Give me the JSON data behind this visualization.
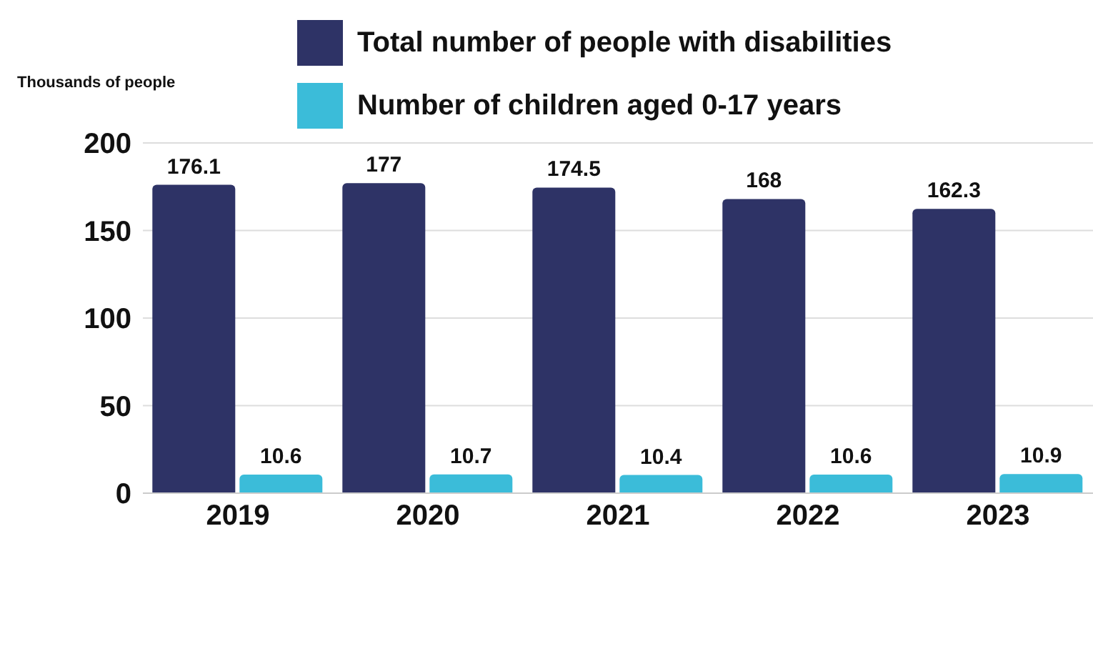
{
  "chart_data": {
    "type": "bar",
    "ylabel": "Thousands of people",
    "categories": [
      "2019",
      "2020",
      "2021",
      "2022",
      "2023"
    ],
    "series": [
      {
        "name": "Total number of people with disabilities",
        "color": "#2e3366",
        "values": [
          176.1,
          177,
          174.5,
          168,
          162.3
        ]
      },
      {
        "name": "Number of children aged 0-17 years",
        "color": "#3bbcd9",
        "values": [
          10.6,
          10.7,
          10.4,
          10.6,
          10.9
        ]
      }
    ],
    "ylim": [
      0,
      200
    ],
    "yticks": [
      0,
      50,
      100,
      150,
      200
    ],
    "grid": "y",
    "legend": "top",
    "data_labels": true
  }
}
